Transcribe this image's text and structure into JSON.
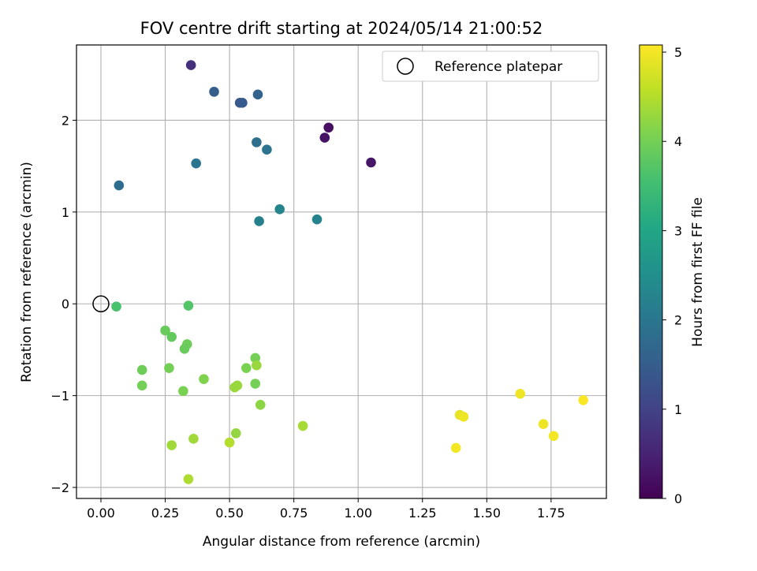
{
  "chart_data": {
    "type": "scatter",
    "title": "FOV centre drift starting at 2024/05/14 21:00:52",
    "xlabel": "Angular distance from reference (arcmin)",
    "ylabel": "Rotation from reference (arcmin)",
    "xlim": [
      -0.095,
      1.965
    ],
    "ylim": [
      -2.12,
      2.82
    ],
    "xticks": [
      0.0,
      0.25,
      0.5,
      0.75,
      1.0,
      1.25,
      1.5,
      1.75
    ],
    "xtick_labels": [
      "0.00",
      "0.25",
      "0.50",
      "0.75",
      "1.00",
      "1.25",
      "1.50",
      "1.75"
    ],
    "yticks": [
      -2,
      -1,
      0,
      1,
      2
    ],
    "ytick_labels": [
      "−2",
      "−1",
      "0",
      "1",
      "2"
    ],
    "grid": true,
    "colormap": "viridis",
    "colorbar": {
      "label": "Hours from first FF file",
      "range": [
        0,
        5.08
      ],
      "ticks": [
        0,
        1,
        2,
        3,
        4,
        5
      ],
      "tick_labels": [
        "0",
        "1",
        "2",
        "3",
        "4",
        "5"
      ]
    },
    "legend": {
      "placement": "top-right",
      "entries": [
        {
          "label": "Reference platepar",
          "marker": "hollow-circle",
          "color": "#000000"
        }
      ]
    },
    "reference": {
      "x": 0.0,
      "y": 0.0
    },
    "points": [
      {
        "x": 0.35,
        "y": 2.6,
        "c": 0.7
      },
      {
        "x": 0.44,
        "y": 2.31,
        "c": 1.5
      },
      {
        "x": 0.54,
        "y": 2.19,
        "c": 1.4
      },
      {
        "x": 0.55,
        "y": 2.19,
        "c": 1.45
      },
      {
        "x": 0.61,
        "y": 2.28,
        "c": 1.6
      },
      {
        "x": 0.885,
        "y": 1.92,
        "c": 0.2
      },
      {
        "x": 0.87,
        "y": 1.81,
        "c": 0.25
      },
      {
        "x": 0.605,
        "y": 1.76,
        "c": 1.85
      },
      {
        "x": 0.645,
        "y": 1.68,
        "c": 1.9
      },
      {
        "x": 1.05,
        "y": 1.54,
        "c": 0.3
      },
      {
        "x": 0.37,
        "y": 1.53,
        "c": 2.0
      },
      {
        "x": 0.07,
        "y": 1.29,
        "c": 1.8
      },
      {
        "x": 0.695,
        "y": 1.03,
        "c": 2.3
      },
      {
        "x": 0.84,
        "y": 0.92,
        "c": 2.25
      },
      {
        "x": 0.615,
        "y": 0.9,
        "c": 2.2
      },
      {
        "x": 0.06,
        "y": -0.03,
        "c": 3.6
      },
      {
        "x": 0.34,
        "y": -0.02,
        "c": 3.7
      },
      {
        "x": 0.25,
        "y": -0.29,
        "c": 3.9
      },
      {
        "x": 0.275,
        "y": -0.36,
        "c": 3.85
      },
      {
        "x": 0.335,
        "y": -0.44,
        "c": 3.95
      },
      {
        "x": 0.325,
        "y": -0.49,
        "c": 3.9
      },
      {
        "x": 0.6,
        "y": -0.59,
        "c": 4.0
      },
      {
        "x": 0.605,
        "y": -0.67,
        "c": 4.3
      },
      {
        "x": 0.565,
        "y": -0.7,
        "c": 4.05
      },
      {
        "x": 0.16,
        "y": -0.72,
        "c": 3.95
      },
      {
        "x": 0.265,
        "y": -0.7,
        "c": 4.0
      },
      {
        "x": 0.4,
        "y": -0.82,
        "c": 4.1
      },
      {
        "x": 0.6,
        "y": -0.87,
        "c": 4.0
      },
      {
        "x": 0.16,
        "y": -0.89,
        "c": 4.0
      },
      {
        "x": 0.53,
        "y": -0.89,
        "c": 4.3
      },
      {
        "x": 0.52,
        "y": -0.91,
        "c": 4.3
      },
      {
        "x": 0.32,
        "y": -0.95,
        "c": 4.05
      },
      {
        "x": 0.62,
        "y": -1.1,
        "c": 4.2
      },
      {
        "x": 0.785,
        "y": -1.33,
        "c": 4.4
      },
      {
        "x": 0.525,
        "y": -1.41,
        "c": 4.25
      },
      {
        "x": 0.36,
        "y": -1.47,
        "c": 4.35
      },
      {
        "x": 0.5,
        "y": -1.51,
        "c": 4.5
      },
      {
        "x": 0.275,
        "y": -1.54,
        "c": 4.35
      },
      {
        "x": 0.34,
        "y": -1.91,
        "c": 4.45
      },
      {
        "x": 1.63,
        "y": -0.98,
        "c": 4.95
      },
      {
        "x": 1.875,
        "y": -1.05,
        "c": 5.05
      },
      {
        "x": 1.395,
        "y": -1.21,
        "c": 4.9
      },
      {
        "x": 1.41,
        "y": -1.23,
        "c": 4.95
      },
      {
        "x": 1.72,
        "y": -1.31,
        "c": 4.95
      },
      {
        "x": 1.76,
        "y": -1.44,
        "c": 5.0
      },
      {
        "x": 1.38,
        "y": -1.57,
        "c": 5.0
      }
    ]
  }
}
